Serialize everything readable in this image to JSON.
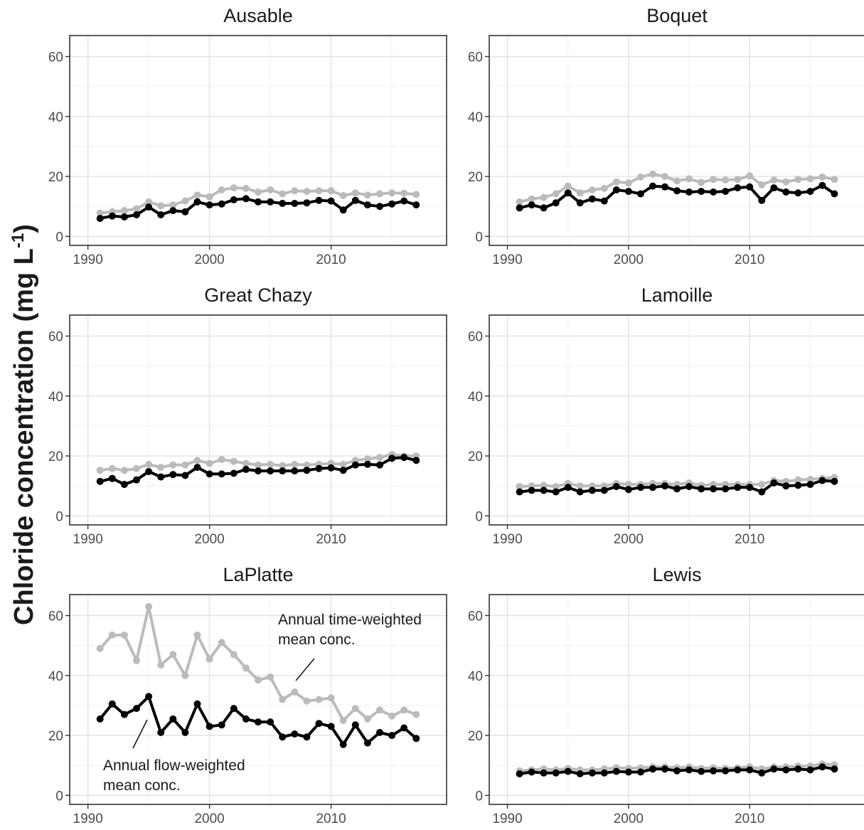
{
  "ylabel": {
    "main": "Chloride concentration (mg L",
    "sup": "-1",
    "close": ")"
  },
  "colors": {
    "time_weighted": "#bbbbbb",
    "flow_weighted": "#000000"
  },
  "chart_data": {
    "type": "line",
    "layout": "facet-grid-3x2",
    "shared_axes": {
      "xlim": [
        1988.5,
        2019.5
      ],
      "ylim": [
        -3,
        67
      ],
      "xticks": [
        1990,
        2000,
        2010
      ],
      "yticks": [
        0,
        20,
        40,
        60
      ],
      "grid": "on"
    },
    "x": [
      1991,
      1992,
      1993,
      1994,
      1995,
      1996,
      1997,
      1998,
      1999,
      2000,
      2001,
      2002,
      2003,
      2004,
      2005,
      2006,
      2007,
      2008,
      2009,
      2010,
      2011,
      2012,
      2013,
      2014,
      2015,
      2016,
      2017
    ],
    "panels": [
      {
        "title": "Ausable",
        "series": [
          {
            "id": "time_weighted",
            "values": [
              7.8,
              8.2,
              8.6,
              9.2,
              11.5,
              10.2,
              10.5,
              11.8,
              13.8,
              13.2,
              15.5,
              16.2,
              16.0,
              14.8,
              15.5,
              14.2,
              15.2,
              15.0,
              15.2,
              15.2,
              13.6,
              14.5,
              13.8,
              14.2,
              14.5,
              14.4,
              14.0
            ]
          },
          {
            "id": "flow_weighted",
            "values": [
              6.0,
              6.8,
              6.5,
              7.2,
              9.8,
              7.2,
              8.6,
              8.2,
              11.5,
              10.5,
              10.8,
              12.2,
              12.6,
              11.5,
              11.5,
              11.0,
              11.0,
              11.2,
              12.0,
              11.8,
              8.8,
              12.0,
              10.5,
              10.0,
              10.8,
              11.8,
              10.5
            ]
          }
        ]
      },
      {
        "title": "Boquet",
        "series": [
          {
            "id": "time_weighted",
            "values": [
              11.5,
              12.5,
              13.0,
              14.2,
              16.8,
              14.5,
              15.5,
              16.0,
              18.2,
              17.8,
              19.8,
              20.8,
              20.0,
              18.5,
              19.2,
              18.0,
              19.0,
              18.8,
              19.0,
              20.2,
              17.2,
              18.8,
              18.2,
              19.0,
              19.2,
              19.8,
              19.0
            ]
          },
          {
            "id": "flow_weighted",
            "values": [
              9.5,
              10.5,
              9.5,
              11.2,
              14.5,
              11.2,
              12.5,
              11.8,
              15.5,
              15.0,
              14.2,
              16.8,
              16.5,
              15.2,
              14.8,
              15.0,
              14.8,
              15.0,
              16.2,
              16.5,
              12.0,
              16.2,
              14.8,
              14.5,
              15.0,
              17.0,
              14.2
            ]
          }
        ]
      },
      {
        "title": "Great Chazy",
        "series": [
          {
            "id": "time_weighted",
            "values": [
              15.2,
              15.8,
              15.2,
              15.8,
              17.2,
              16.2,
              17.0,
              17.0,
              18.5,
              17.5,
              18.8,
              18.2,
              17.5,
              17.0,
              17.2,
              16.8,
              17.2,
              17.0,
              17.2,
              17.5,
              17.2,
              18.5,
              19.0,
              19.5,
              20.5,
              20.0,
              20.0
            ]
          },
          {
            "id": "flow_weighted",
            "values": [
              11.5,
              12.5,
              10.5,
              12.0,
              14.8,
              13.0,
              13.8,
              13.5,
              16.2,
              14.0,
              14.0,
              14.2,
              15.5,
              15.0,
              15.0,
              15.0,
              15.0,
              15.2,
              15.8,
              16.0,
              15.2,
              17.0,
              17.2,
              17.0,
              19.2,
              19.5,
              18.5
            ]
          }
        ]
      },
      {
        "title": "Lamoille",
        "series": [
          {
            "id": "time_weighted",
            "values": [
              9.8,
              10.0,
              10.2,
              9.8,
              10.8,
              10.0,
              10.0,
              10.0,
              10.8,
              10.5,
              10.5,
              10.8,
              10.8,
              10.5,
              11.0,
              10.2,
              10.5,
              10.5,
              10.5,
              10.5,
              10.5,
              11.8,
              11.5,
              12.0,
              12.2,
              12.5,
              12.8
            ]
          },
          {
            "id": "flow_weighted",
            "values": [
              8.0,
              8.5,
              8.5,
              8.0,
              9.5,
              8.0,
              8.5,
              8.5,
              9.8,
              8.8,
              9.5,
              9.5,
              10.0,
              9.0,
              9.8,
              9.0,
              9.0,
              9.0,
              9.5,
              9.5,
              8.0,
              11.0,
              10.0,
              10.2,
              10.5,
              11.8,
              11.5
            ]
          }
        ]
      },
      {
        "title": "LaPlatte",
        "annotations": [
          {
            "text": [
              "Annual time-weighted",
              "mean conc."
            ],
            "series": "time_weighted"
          },
          {
            "text": [
              "Annual flow-weighted",
              "mean conc."
            ],
            "series": "flow_weighted"
          }
        ],
        "series": [
          {
            "id": "time_weighted",
            "values": [
              49.0,
              53.5,
              53.5,
              45.0,
              63.0,
              43.5,
              47.0,
              40.0,
              53.5,
              45.5,
              51.0,
              47.0,
              42.5,
              38.5,
              39.5,
              32.0,
              34.5,
              31.5,
              32.0,
              32.5,
              25.0,
              29.0,
              25.5,
              28.5,
              26.5,
              28.5,
              27.0
            ]
          },
          {
            "id": "flow_weighted",
            "values": [
              25.5,
              30.5,
              27.0,
              29.0,
              33.0,
              21.0,
              25.5,
              21.0,
              30.5,
              23.0,
              23.5,
              29.0,
              25.5,
              24.5,
              24.5,
              19.5,
              20.5,
              19.5,
              24.0,
              23.0,
              17.0,
              23.5,
              17.5,
              21.0,
              20.0,
              22.5,
              19.0
            ]
          }
        ]
      },
      {
        "title": "Lewis",
        "series": [
          {
            "id": "time_weighted",
            "values": [
              8.2,
              8.5,
              8.8,
              8.5,
              9.0,
              8.5,
              8.5,
              8.8,
              9.2,
              9.0,
              9.2,
              9.5,
              9.5,
              9.2,
              9.5,
              9.0,
              9.2,
              9.0,
              9.2,
              9.5,
              8.8,
              9.5,
              9.5,
              9.8,
              9.8,
              10.5,
              10.2
            ]
          },
          {
            "id": "flow_weighted",
            "values": [
              7.2,
              7.8,
              7.5,
              7.5,
              8.0,
              7.2,
              7.5,
              7.5,
              8.0,
              7.8,
              7.8,
              8.8,
              8.8,
              8.2,
              8.5,
              8.0,
              8.2,
              8.2,
              8.5,
              8.5,
              7.5,
              8.8,
              8.5,
              8.8,
              8.5,
              9.5,
              8.8
            ]
          }
        ]
      }
    ]
  }
}
